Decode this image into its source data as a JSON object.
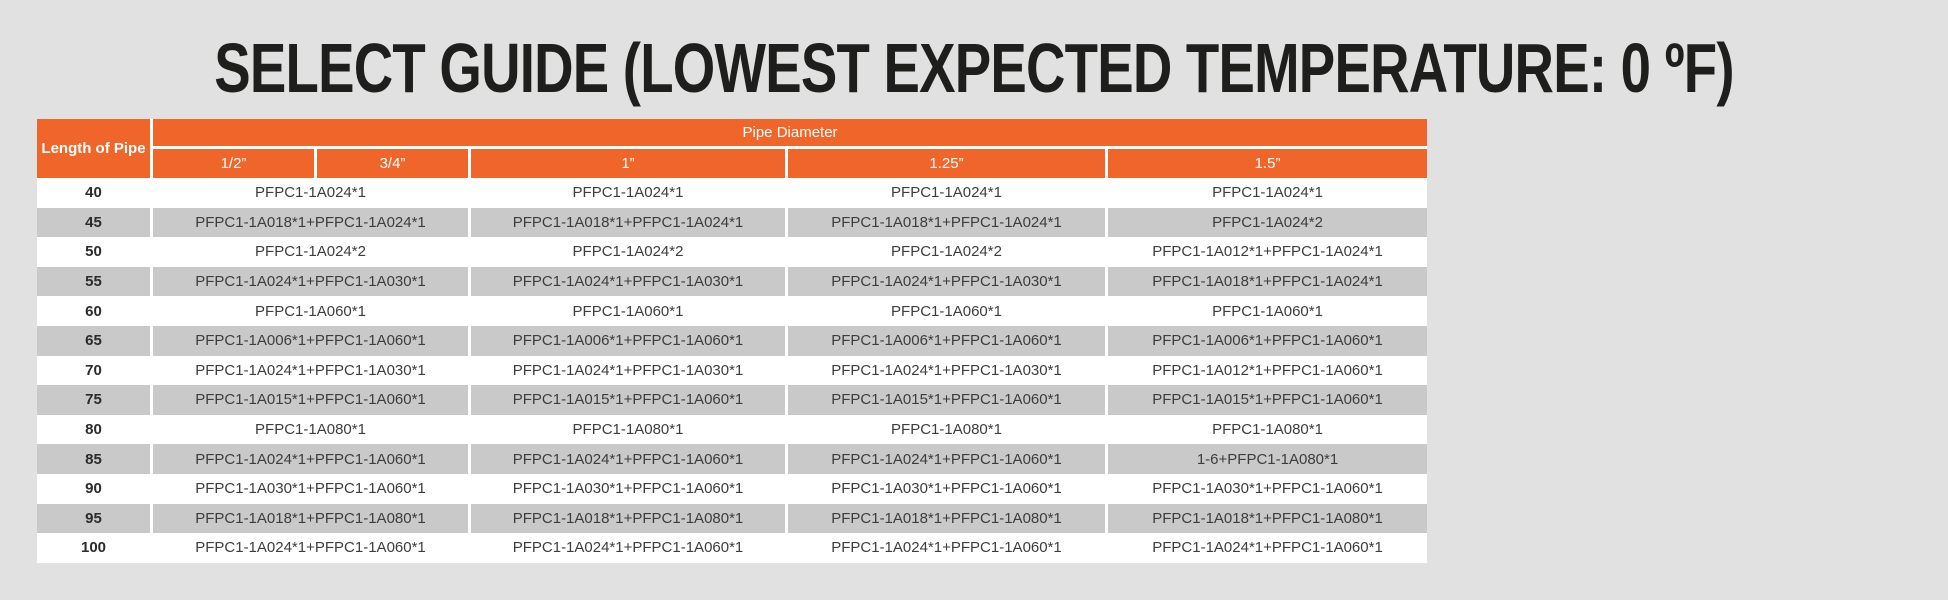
{
  "title": "SELECT GUIDE (LOWEST EXPECTED TEMPERATURE: 0 ºF)",
  "colors": {
    "accent_orange": "#F0662A",
    "row_gray": "#C9C9C9",
    "row_white": "#FFFFFF",
    "page_background": "#E1E1E1",
    "title_text": "#1E1E1C",
    "header_text": "#FFFFFF",
    "cell_text": "#3D3D3D"
  },
  "table": {
    "length_header": "Length of Pipe",
    "diameter_group_header": "Pipe Diameter",
    "diameter_columns": [
      "1/2”",
      "3/4”",
      "1”",
      "1.25”",
      "1.5”"
    ],
    "rows": [
      {
        "length": "40",
        "cells": [
          "PFPC1-1A024*1",
          "PFPC1-1A024*1",
          "PFPC1-1A024*1",
          "PFPC1-1A024*1"
        ]
      },
      {
        "length": "45",
        "cells": [
          "PFPC1-1A018*1+PFPC1-1A024*1",
          "PFPC1-1A018*1+PFPC1-1A024*1",
          "PFPC1-1A018*1+PFPC1-1A024*1",
          "PFPC1-1A024*2"
        ]
      },
      {
        "length": "50",
        "cells": [
          "PFPC1-1A024*2",
          "PFPC1-1A024*2",
          "PFPC1-1A024*2",
          "PFPC1-1A012*1+PFPC1-1A024*1"
        ]
      },
      {
        "length": "55",
        "cells": [
          "PFPC1-1A024*1+PFPC1-1A030*1",
          "PFPC1-1A024*1+PFPC1-1A030*1",
          "PFPC1-1A024*1+PFPC1-1A030*1",
          "PFPC1-1A018*1+PFPC1-1A024*1"
        ]
      },
      {
        "length": "60",
        "cells": [
          "PFPC1-1A060*1",
          "PFPC1-1A060*1",
          "PFPC1-1A060*1",
          "PFPC1-1A060*1"
        ]
      },
      {
        "length": "65",
        "cells": [
          "PFPC1-1A006*1+PFPC1-1A060*1",
          "PFPC1-1A006*1+PFPC1-1A060*1",
          "PFPC1-1A006*1+PFPC1-1A060*1",
          "PFPC1-1A006*1+PFPC1-1A060*1"
        ]
      },
      {
        "length": "70",
        "cells": [
          "PFPC1-1A024*1+PFPC1-1A030*1",
          "PFPC1-1A024*1+PFPC1-1A030*1",
          "PFPC1-1A024*1+PFPC1-1A030*1",
          "PFPC1-1A012*1+PFPC1-1A060*1"
        ]
      },
      {
        "length": "75",
        "cells": [
          "PFPC1-1A015*1+PFPC1-1A060*1",
          "PFPC1-1A015*1+PFPC1-1A060*1",
          "PFPC1-1A015*1+PFPC1-1A060*1",
          "PFPC1-1A015*1+PFPC1-1A060*1"
        ]
      },
      {
        "length": "80",
        "cells": [
          "PFPC1-1A080*1",
          "PFPC1-1A080*1",
          "PFPC1-1A080*1",
          "PFPC1-1A080*1"
        ]
      },
      {
        "length": "85",
        "cells": [
          "PFPC1-1A024*1+PFPC1-1A060*1",
          "PFPC1-1A024*1+PFPC1-1A060*1",
          "PFPC1-1A024*1+PFPC1-1A060*1",
          "1-6+PFPC1-1A080*1"
        ]
      },
      {
        "length": "90",
        "cells": [
          "PFPC1-1A030*1+PFPC1-1A060*1",
          "PFPC1-1A030*1+PFPC1-1A060*1",
          "PFPC1-1A030*1+PFPC1-1A060*1",
          "PFPC1-1A030*1+PFPC1-1A060*1"
        ]
      },
      {
        "length": "95",
        "cells": [
          "PFPC1-1A018*1+PFPC1-1A080*1",
          "PFPC1-1A018*1+PFPC1-1A080*1",
          "PFPC1-1A018*1+PFPC1-1A080*1",
          "PFPC1-1A018*1+PFPC1-1A080*1"
        ]
      },
      {
        "length": "100",
        "cells": [
          "PFPC1-1A024*1+PFPC1-1A060*1",
          "PFPC1-1A024*1+PFPC1-1A060*1",
          "PFPC1-1A024*1+PFPC1-1A060*1",
          "PFPC1-1A024*1+PFPC1-1A060*1"
        ]
      }
    ]
  }
}
